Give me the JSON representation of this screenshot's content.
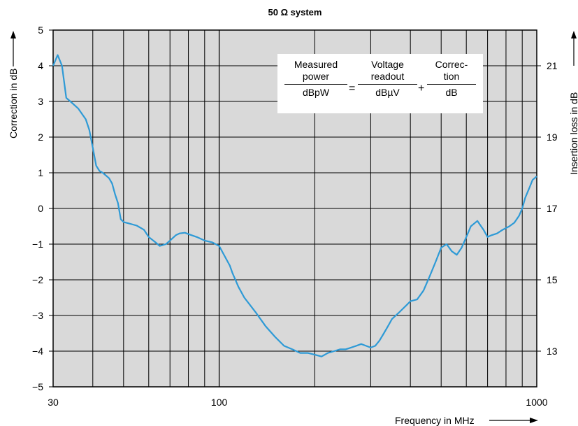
{
  "chart_data": {
    "type": "line",
    "title": "50 Ω system",
    "xlabel": "Frequency in MHz",
    "ylabel": "Correction in dB",
    "y2label": "Insertion loss in dB",
    "xscale": "log",
    "xlim": [
      30,
      1000
    ],
    "ylim": [
      -5,
      5
    ],
    "y2lim": [
      12,
      22
    ],
    "x_tick_labels": [
      "30",
      "100",
      "1000"
    ],
    "x_tick_values": [
      30,
      100,
      1000
    ],
    "y_tick_labels": [
      "5",
      "4",
      "3",
      "2",
      "1",
      "0",
      "−1",
      "−2",
      "−3",
      "−4",
      "−5"
    ],
    "y_tick_values": [
      5,
      4,
      3,
      2,
      1,
      0,
      -1,
      -2,
      -3,
      -4,
      -5
    ],
    "y2_tick_labels": [
      "21",
      "19",
      "17",
      "15",
      "13"
    ],
    "y2_tick_values": [
      21,
      19,
      17,
      15,
      13
    ],
    "grid": true,
    "background_color": "#d9d9d9",
    "line_color": "#2e9ad6",
    "series": [
      {
        "x": [
          30,
          31,
          32,
          33,
          34,
          36,
          38,
          39,
          40,
          41,
          42,
          43,
          45,
          46,
          47,
          48,
          49,
          50,
          52,
          55,
          58,
          60,
          63,
          65,
          68,
          70,
          73,
          75,
          78,
          80,
          85,
          90,
          95,
          100,
          105,
          108,
          110,
          115,
          120,
          130,
          140,
          150,
          160,
          170,
          180,
          190,
          200,
          210,
          220,
          230,
          240,
          250,
          260,
          270,
          280,
          290,
          300,
          310,
          320,
          330,
          340,
          350,
          370,
          390,
          400,
          420,
          440,
          460,
          480,
          500,
          520,
          540,
          560,
          580,
          600,
          620,
          650,
          680,
          700,
          720,
          750,
          780,
          800,
          820,
          850,
          880,
          900,
          920,
          950,
          970,
          1000
        ],
        "y": [
          4.0,
          4.3,
          4.0,
          3.1,
          3.0,
          2.8,
          2.5,
          2.2,
          1.7,
          1.2,
          1.05,
          1.0,
          0.85,
          0.7,
          0.4,
          0.15,
          -0.3,
          -0.38,
          -0.42,
          -0.48,
          -0.6,
          -0.8,
          -0.95,
          -1.05,
          -1.0,
          -0.9,
          -0.75,
          -0.7,
          -0.68,
          -0.72,
          -0.8,
          -0.9,
          -0.95,
          -1.05,
          -1.4,
          -1.6,
          -1.8,
          -2.2,
          -2.5,
          -2.9,
          -3.3,
          -3.6,
          -3.85,
          -3.95,
          -4.05,
          -4.05,
          -4.1,
          -4.15,
          -4.05,
          -4.0,
          -3.95,
          -3.95,
          -3.9,
          -3.85,
          -3.8,
          -3.85,
          -3.9,
          -3.85,
          -3.7,
          -3.5,
          -3.3,
          -3.1,
          -2.9,
          -2.7,
          -2.6,
          -2.55,
          -2.3,
          -1.9,
          -1.5,
          -1.1,
          -1.0,
          -1.2,
          -1.3,
          -1.1,
          -0.8,
          -0.5,
          -0.35,
          -0.6,
          -0.8,
          -0.75,
          -0.7,
          -0.6,
          -0.55,
          -0.5,
          -0.4,
          -0.2,
          0.0,
          0.3,
          0.6,
          0.8,
          0.9
        ]
      }
    ],
    "annotation": {
      "lhs_numerator": [
        "Measured",
        "power"
      ],
      "lhs_denominator": "dBpW",
      "equals": "=",
      "mid_numerator": [
        "Voltage",
        "readout"
      ],
      "mid_denominator": "dBµV",
      "plus": "+",
      "rhs_numerator": [
        "Correc-",
        "tion"
      ],
      "rhs_denominator": "dB"
    }
  }
}
